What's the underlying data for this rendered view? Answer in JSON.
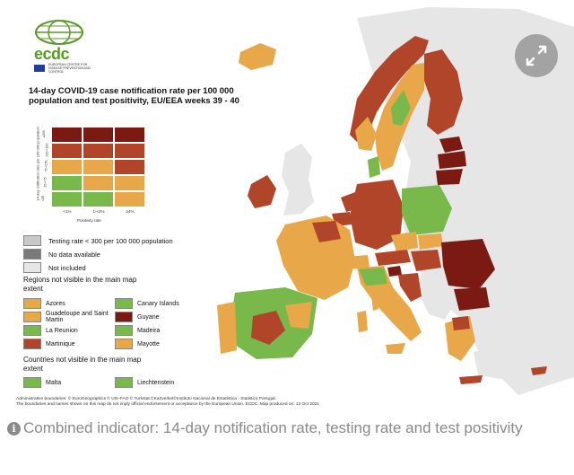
{
  "colors": {
    "dark_red": "#7a1a12",
    "red": "#b0452a",
    "orange": "#e8a84a",
    "green": "#79b84a",
    "grey": "#c8c8c8",
    "dark_grey": "#7a7a7a",
    "light_grey": "#e6e6e6",
    "sea": "#ffffff"
  },
  "logo": {
    "text": "ecdc",
    "subtitle": "EUROPEAN CENTRE FOR DISEASE PREVENTION AND CONTROL"
  },
  "title": "14-day COVID-19 case notification rate per 100 000 population and test positivity, EU/EEA weeks 39 - 40",
  "matrix": {
    "y_title": "14-day notification rate per 100 000 population",
    "x_title": "Positivity rate",
    "x_ticks": [
      "<1%",
      "1-<4%",
      "≥4%"
    ],
    "y_ticks": [
      "≥200",
      "150-<200",
      "75-<150",
      "25-<75",
      "<25"
    ],
    "cells": [
      [
        "dark_red",
        "dark_red",
        "dark_red"
      ],
      [
        "red",
        "red",
        "red"
      ],
      [
        "orange",
        "orange",
        "red"
      ],
      [
        "green",
        "orange",
        "orange"
      ],
      [
        "green",
        "green",
        "orange"
      ]
    ]
  },
  "legend": [
    {
      "label": "Testing rate < 300 per 100 000 population",
      "color": "grey"
    },
    {
      "label": "No data available",
      "color": "dark_grey"
    },
    {
      "label": "Not included",
      "color": "light_grey"
    }
  ],
  "regions_title": "Regions not visible in the main map extent",
  "regions": [
    {
      "label": "Azores",
      "color": "orange"
    },
    {
      "label": "Canary Islands",
      "color": "green"
    },
    {
      "label": "Guadeloupe and Saint Martin",
      "color": "orange"
    },
    {
      "label": "Guyane",
      "color": "dark_red"
    },
    {
      "label": "La Reunion",
      "color": "green"
    },
    {
      "label": "Madeira",
      "color": "green"
    },
    {
      "label": "Martinique",
      "color": "red"
    },
    {
      "label": "Mayotte",
      "color": "orange"
    }
  ],
  "countries_title": "Countries not visible in the main map extent",
  "countries": [
    {
      "label": "Malta",
      "color": "green"
    },
    {
      "label": "Liechtenstein",
      "color": "green"
    }
  ],
  "footer": {
    "line1": "Administrative boundaries: © EuroGeographics © UN–FAO © Turkstat.©Kartverket©Instituto Nacional de Estatística - Statistics Portugal.",
    "line2": "The boundaries and names shown on this map do not imply official endorsement or acceptance by the European Union. ECDC. Map produced on: 13 Oct 2021"
  },
  "caption": "Combined indicator: 14-day notification rate, testing rate and test positivity",
  "icons": {
    "expand": "expand-icon",
    "info": "info-icon"
  }
}
